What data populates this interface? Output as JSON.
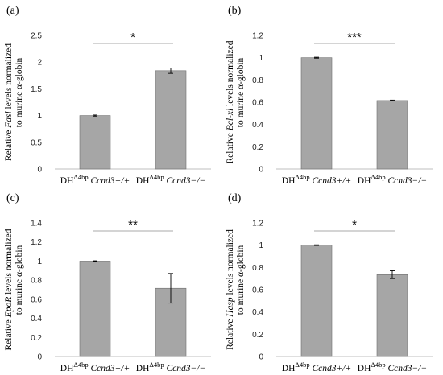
{
  "panels": [
    {
      "label": "(a)",
      "gene": "Fasl",
      "ylabel_pre": "Relative ",
      "ylabel_post": " levels normalized",
      "ylabel_line2": "to murine α-globin"
    },
    {
      "label": "(b)",
      "gene": "Bcl-xl",
      "ylabel_pre": "Relative ",
      "ylabel_post": " levels normalized",
      "ylabel_line2": "to murine α-globin"
    },
    {
      "label": "(c)",
      "gene": "EpoR",
      "ylabel_pre": "Relative ",
      "ylabel_post": " levels normalized",
      "ylabel_line2": "to murine α-globin"
    },
    {
      "label": "(d)",
      "gene": "Hasp",
      "ylabel_pre": "Relative ",
      "ylabel_post": " levels normalized",
      "ylabel_line2": "to murine α-globin"
    }
  ],
  "x_categories": [
    {
      "prefix": "DH",
      "superscript": "Δ4bp",
      "genotype": "Ccnd3+/+"
    },
    {
      "prefix": "DH",
      "superscript": "Δ4bp",
      "genotype": "Ccnd3−/−"
    }
  ],
  "colors": {
    "bar": "#a6a6a6",
    "bar_edge": "#6e6e6e",
    "axis": "#bfbfbf",
    "line": "#8c8c8c"
  },
  "chart_data": [
    {
      "type": "bar",
      "title": "",
      "ylim": [
        0,
        2.5
      ],
      "yticks": [
        "0",
        "0.5",
        "1",
        "1.5",
        "2",
        "2.5"
      ],
      "tick_values": [
        0,
        0.5,
        1,
        1.5,
        2,
        2.5
      ],
      "values": [
        1.0,
        1.84
      ],
      "errors": [
        0.01,
        0.05
      ],
      "significance": "*",
      "grid": false
    },
    {
      "type": "bar",
      "title": "",
      "ylim": [
        0,
        1.2
      ],
      "yticks": [
        "0",
        "0.2",
        "0.4",
        "0.6",
        "0.8",
        "1",
        "1.2"
      ],
      "tick_values": [
        0,
        0.2,
        0.4,
        0.6,
        0.8,
        1,
        1.2
      ],
      "values": [
        1.0,
        0.615
      ],
      "errors": [
        0.004,
        0.004
      ],
      "significance": "***",
      "grid": false
    },
    {
      "type": "bar",
      "title": "",
      "ylim": [
        0,
        1.4
      ],
      "yticks": [
        "0",
        "0.2",
        "0.4",
        "0.6",
        "0.8",
        "1",
        "1.2",
        "1.4"
      ],
      "tick_values": [
        0,
        0.2,
        0.4,
        0.6,
        0.8,
        1,
        1.2,
        1.4
      ],
      "values": [
        1.0,
        0.715
      ],
      "errors": [
        0.003,
        0.155
      ],
      "significance": "**",
      "grid": false
    },
    {
      "type": "bar",
      "title": "",
      "ylim": [
        0,
        1.2
      ],
      "yticks": [
        "0",
        "0.2",
        "0.4",
        "0.6",
        "0.8",
        "1",
        "1.2"
      ],
      "tick_values": [
        0,
        0.2,
        0.4,
        0.6,
        0.8,
        1,
        1.2
      ],
      "values": [
        1.0,
        0.735
      ],
      "errors": [
        0.003,
        0.035
      ],
      "significance": "*",
      "grid": false
    }
  ]
}
